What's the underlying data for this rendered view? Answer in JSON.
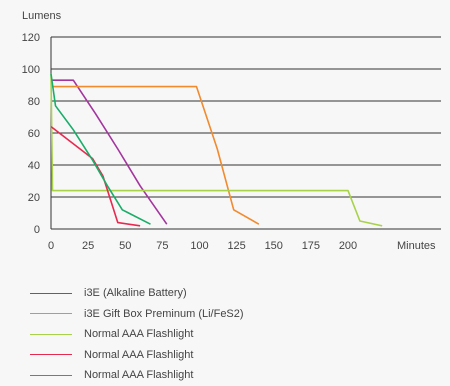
{
  "chart_data": {
    "type": "line",
    "ylabel": "Lumens",
    "xlabel": "Minutes",
    "xlim": [
      0,
      260
    ],
    "ylim": [
      0,
      120
    ],
    "x_ticks": [
      0,
      25,
      50,
      75,
      100,
      125,
      150,
      175,
      200
    ],
    "y_ticks": [
      0,
      20,
      40,
      60,
      80,
      100,
      120
    ],
    "grid": "horizontal",
    "legend_position": "bottom",
    "series": [
      {
        "name": "i3E (Alkaline Battery)",
        "color": "#a3359e",
        "points": [
          [
            0,
            93
          ],
          [
            15,
            93
          ],
          [
            30,
            72
          ],
          [
            45,
            50
          ],
          [
            60,
            27
          ],
          [
            78,
            3
          ]
        ]
      },
      {
        "name": "i3E Gift Box Preminum (Li/FeS2)",
        "color": "#f28a2e",
        "points": [
          [
            0,
            89
          ],
          [
            98,
            89
          ],
          [
            112,
            50
          ],
          [
            123,
            12
          ],
          [
            140,
            3
          ]
        ]
      },
      {
        "name": "Normal AAA Flashlight",
        "color": "#a8d24a",
        "points": [
          [
            0,
            97
          ],
          [
            1,
            24
          ],
          [
            200,
            24
          ],
          [
            208,
            5
          ],
          [
            223,
            2
          ]
        ]
      },
      {
        "name": "Normal AAA Flashlight",
        "color": "#e8294f",
        "points": [
          [
            0,
            64
          ],
          [
            14,
            54
          ],
          [
            28,
            44
          ],
          [
            35,
            33
          ],
          [
            45,
            4
          ],
          [
            60,
            2
          ]
        ]
      },
      {
        "name": "Normal AAA Flashlight",
        "color": "#1aad6a",
        "points": [
          [
            0,
            97
          ],
          [
            3,
            77
          ],
          [
            15,
            62
          ],
          [
            28,
            43
          ],
          [
            38,
            27
          ],
          [
            48,
            12
          ],
          [
            67,
            3
          ]
        ]
      }
    ]
  }
}
